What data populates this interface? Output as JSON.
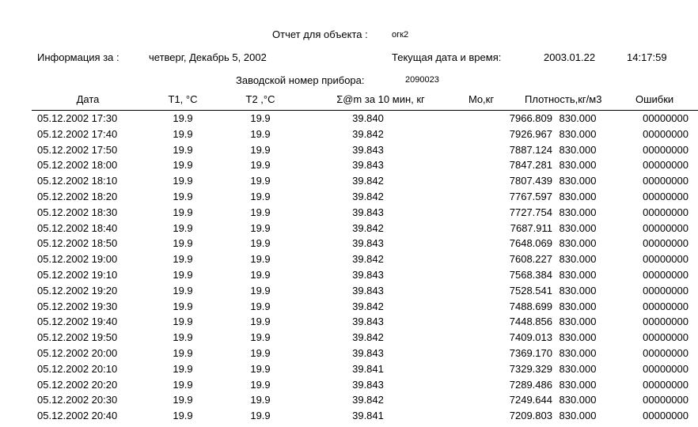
{
  "report": {
    "title_label": "Отчет для объекта :",
    "object_name": "огк2",
    "info_label": "Информация за :",
    "info_date": "четверг, Декабрь 5, 2002",
    "current_label": "Текущая дата и время:",
    "current_date": "2003.01.22",
    "current_time": "14:17:59",
    "serial_label": "Заводской номер прибора:",
    "serial_value": "2090023"
  },
  "table": {
    "columns": [
      "Дата",
      "T1, °C",
      "T2 ,°C",
      "Σ@m за 10 мин, кг",
      "Mo,кг",
      "Плотность,кг/м3",
      "Ошибки"
    ],
    "rows": [
      [
        "05.12.2002 17:30",
        "19.9",
        "19.9",
        "39.840",
        "7966.809",
        "830.000",
        "00000000"
      ],
      [
        "05.12.2002 17:40",
        "19.9",
        "19.9",
        "39.842",
        "7926.967",
        "830.000",
        "00000000"
      ],
      [
        "05.12.2002 17:50",
        "19.9",
        "19.9",
        "39.843",
        "7887.124",
        "830.000",
        "00000000"
      ],
      [
        "05.12.2002 18:00",
        "19.9",
        "19.9",
        "39.843",
        "7847.281",
        "830.000",
        "00000000"
      ],
      [
        "05.12.2002 18:10",
        "19.9",
        "19.9",
        "39.842",
        "7807.439",
        "830.000",
        "00000000"
      ],
      [
        "05.12.2002 18:20",
        "19.9",
        "19.9",
        "39.842",
        "7767.597",
        "830.000",
        "00000000"
      ],
      [
        "05.12.2002 18:30",
        "19.9",
        "19.9",
        "39.843",
        "7727.754",
        "830.000",
        "00000000"
      ],
      [
        "05.12.2002 18:40",
        "19.9",
        "19.9",
        "39.842",
        "7687.911",
        "830.000",
        "00000000"
      ],
      [
        "05.12.2002 18:50",
        "19.9",
        "19.9",
        "39.843",
        "7648.069",
        "830.000",
        "00000000"
      ],
      [
        "05.12.2002 19:00",
        "19.9",
        "19.9",
        "39.842",
        "7608.227",
        "830.000",
        "00000000"
      ],
      [
        "05.12.2002 19:10",
        "19.9",
        "19.9",
        "39.843",
        "7568.384",
        "830.000",
        "00000000"
      ],
      [
        "05.12.2002 19:20",
        "19.9",
        "19.9",
        "39.843",
        "7528.541",
        "830.000",
        "00000000"
      ],
      [
        "05.12.2002 19:30",
        "19.9",
        "19.9",
        "39.842",
        "7488.699",
        "830.000",
        "00000000"
      ],
      [
        "05.12.2002 19:40",
        "19.9",
        "19.9",
        "39.843",
        "7448.856",
        "830.000",
        "00000000"
      ],
      [
        "05.12.2002 19:50",
        "19.9",
        "19.9",
        "39.842",
        "7409.013",
        "830.000",
        "00000000"
      ],
      [
        "05.12.2002 20:00",
        "19.9",
        "19.9",
        "39.843",
        "7369.170",
        "830.000",
        "00000000"
      ],
      [
        "05.12.2002 20:10",
        "19.9",
        "19.9",
        "39.841",
        "7329.329",
        "830.000",
        "00000000"
      ],
      [
        "05.12.2002 20:20",
        "19.9",
        "19.9",
        "39.843",
        "7289.486",
        "830.000",
        "00000000"
      ],
      [
        "05.12.2002 20:30",
        "19.9",
        "19.9",
        "39.842",
        "7249.644",
        "830.000",
        "00000000"
      ],
      [
        "05.12.2002 20:40",
        "19.9",
        "19.9",
        "39.841",
        "7209.803",
        "830.000",
        "00000000"
      ]
    ]
  }
}
